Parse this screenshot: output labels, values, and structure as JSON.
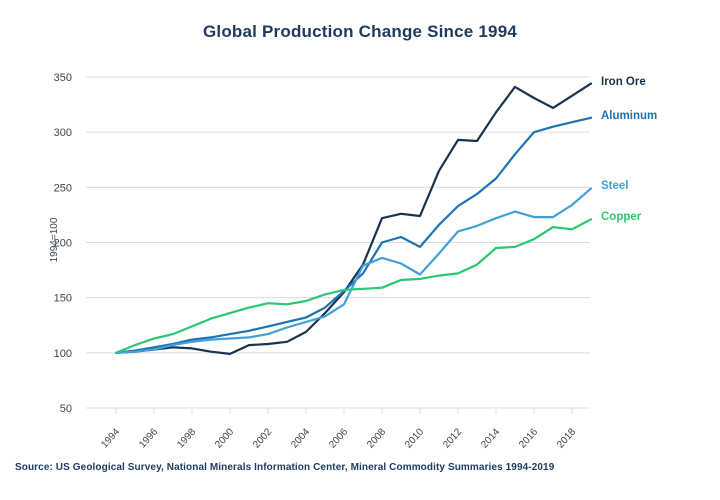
{
  "title": "Global Production Change Since 1994",
  "source": "Source: US Geological Survey, National Minerals Information Center, Mineral Commodity Summaries 1994-2019",
  "colors": {
    "title_text": "#1e3a5f",
    "axis_text": "#3d454d",
    "gridline": "#dcdcdc",
    "background": "#ffffff"
  },
  "chart_data": {
    "type": "line",
    "title": "Global Production Change Since 1994",
    "xlabel": "",
    "ylabel": "1994=100",
    "ylim": [
      50,
      350
    ],
    "y_ticks": [
      50,
      100,
      150,
      200,
      250,
      300,
      350
    ],
    "x_ticks": [
      1994,
      1996,
      1998,
      2000,
      2002,
      2004,
      2006,
      2008,
      2010,
      2012,
      2014,
      2016,
      2018
    ],
    "grid": "horizontal-only",
    "legend_position": "right-end-of-lines",
    "x": [
      1994,
      1995,
      1996,
      1997,
      1998,
      1999,
      2000,
      2001,
      2002,
      2003,
      2004,
      2005,
      2006,
      2007,
      2008,
      2009,
      2010,
      2011,
      2012,
      2013,
      2014,
      2015,
      2016,
      2017,
      2018,
      2019
    ],
    "series": [
      {
        "name": "Iron Ore",
        "color": "#17334f",
        "values": [
          100,
          101,
          103,
          105,
          104,
          101,
          99,
          107,
          108,
          110,
          119,
          136,
          155,
          180,
          222,
          226,
          224,
          265,
          293,
          292,
          318,
          341,
          331,
          322,
          333,
          344
        ]
      },
      {
        "name": "Aluminum",
        "color": "#1e73b4",
        "values": [
          100,
          102,
          105,
          108,
          112,
          114,
          117,
          120,
          124,
          128,
          132,
          141,
          156,
          172,
          200,
          205,
          196,
          216,
          233,
          244,
          258,
          280,
          300,
          305,
          309,
          313
        ]
      },
      {
        "name": "Steel",
        "color": "#41a0d9",
        "values": [
          100,
          101,
          103,
          107,
          110,
          112,
          113,
          114,
          117,
          123,
          128,
          133,
          144,
          179,
          186,
          181,
          171,
          190,
          210,
          215,
          222,
          228,
          223,
          223,
          234,
          249
        ]
      },
      {
        "name": "Copper",
        "color": "#29c76f",
        "values": [
          100,
          107,
          113,
          117,
          124,
          131,
          136,
          141,
          145,
          144,
          147,
          153,
          157,
          158,
          159,
          166,
          167,
          170,
          172,
          180,
          195,
          196,
          203,
          214,
          212,
          221
        ]
      }
    ]
  }
}
